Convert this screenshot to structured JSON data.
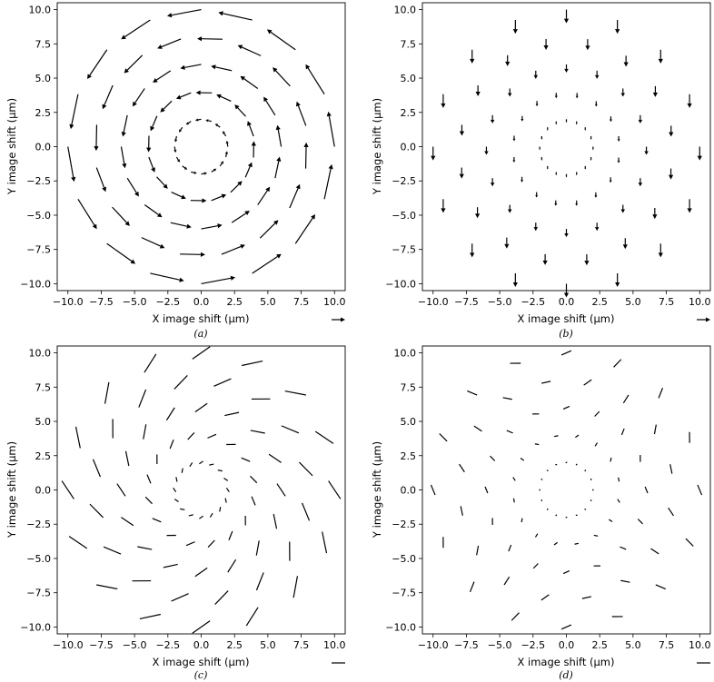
{
  "figure": {
    "panels": [
      {
        "caption": "(a)",
        "xlabel": "X image shift (µm)",
        "ylabel": "Y image shift (µm)",
        "key": "arrow"
      },
      {
        "caption": "(b)",
        "xlabel": "X image shift (µm)",
        "ylabel": "Y image shift (µm)",
        "key": "arrow"
      },
      {
        "caption": "(c)",
        "xlabel": "X image shift (µm)",
        "ylabel": "Y image shift (µm)",
        "key": "line"
      },
      {
        "caption": "(d)",
        "xlabel": "X image shift (µm)",
        "ylabel": "Y image shift (µm)",
        "key": "line"
      }
    ]
  },
  "chart_data": [
    {
      "type": "scatter",
      "subtype": "quiver",
      "caption": "(a)",
      "xlabel": "X image shift (µm)",
      "ylabel": "Y image shift (µm)",
      "xlim": [
        -10.8,
        10.8
      ],
      "ylim": [
        -10.5,
        10.5
      ],
      "xticks": [
        -10.0,
        -7.5,
        -5.0,
        -2.5,
        0.0,
        2.5,
        5.0,
        7.5,
        10.0
      ],
      "yticks": [
        -10.0,
        -7.5,
        -5.0,
        -2.5,
        0.0,
        2.5,
        5.0,
        7.5,
        10.0
      ],
      "tick_labels": [
        "−10.0",
        "−7.5",
        "−5.0",
        "−2.5",
        "0.0",
        "2.5",
        "5.0",
        "7.5",
        "10.0"
      ],
      "grid": false,
      "field": "rotation",
      "rings": [
        {
          "radius": 2,
          "count": 16,
          "magnitude": 0.45,
          "angle_offset_deg": 0
        },
        {
          "radius": 4,
          "count": 16,
          "magnitude": 1.2,
          "angle_offset_deg": 11
        },
        {
          "radius": 6,
          "count": 16,
          "magnitude": 1.6,
          "angle_offset_deg": 0
        },
        {
          "radius": 8,
          "count": 16,
          "magnitude": 1.9,
          "angle_offset_deg": 11
        },
        {
          "radius": 10,
          "count": 16,
          "magnitude": 2.6,
          "angle_offset_deg": 0
        }
      ],
      "markers": "arrow"
    },
    {
      "type": "scatter",
      "subtype": "quiver",
      "caption": "(b)",
      "xlabel": "X image shift (µm)",
      "ylabel": "Y image shift (µm)",
      "xlim": [
        -10.8,
        10.8
      ],
      "ylim": [
        -10.5,
        10.5
      ],
      "xticks": [
        -10.0,
        -7.5,
        -5.0,
        -2.5,
        0.0,
        2.5,
        5.0,
        7.5,
        10.0
      ],
      "yticks": [
        -10.0,
        -7.5,
        -5.0,
        -2.5,
        0.0,
        2.5,
        5.0,
        7.5,
        10.0
      ],
      "tick_labels": [
        "−10.0",
        "−7.5",
        "−5.0",
        "−2.5",
        "0.0",
        "2.5",
        "5.0",
        "7.5",
        "10.0"
      ],
      "grid": false,
      "field": "downward-translation",
      "rings": [
        {
          "radius": 2,
          "count": 16,
          "magnitude": 0.25,
          "angle_offset_deg": 0
        },
        {
          "radius": 4,
          "count": 16,
          "magnitude": 0.4,
          "angle_offset_deg": 11
        },
        {
          "radius": 6,
          "count": 16,
          "magnitude": 0.6,
          "angle_offset_deg": 0
        },
        {
          "radius": 8,
          "count": 16,
          "magnitude": 0.8,
          "angle_offset_deg": 11
        },
        {
          "radius": 10,
          "count": 16,
          "magnitude": 1.0,
          "angle_offset_deg": 0
        }
      ],
      "markers": "arrow"
    },
    {
      "type": "scatter",
      "subtype": "quiver",
      "caption": "(c)",
      "xlabel": "X image shift (µm)",
      "ylabel": "Y image shift (µm)",
      "xlim": [
        -10.8,
        10.8
      ],
      "ylim": [
        -10.5,
        10.5
      ],
      "xticks": [
        -10.0,
        -7.5,
        -5.0,
        -2.5,
        0.0,
        2.5,
        5.0,
        7.5,
        10.0
      ],
      "yticks": [
        -10.0,
        -7.5,
        -5.0,
        -2.5,
        0.0,
        2.5,
        5.0,
        7.5,
        10.0
      ],
      "tick_labels": [
        "−10.0",
        "−7.5",
        "−5.0",
        "−2.5",
        "0.0",
        "2.5",
        "5.0",
        "7.5",
        "10.0"
      ],
      "grid": false,
      "field": "axis-orientation",
      "rings": [
        {
          "radius": 2,
          "count": 16,
          "magnitude": 0.35,
          "angle_offset_deg": 0
        },
        {
          "radius": 4,
          "count": 16,
          "magnitude": 0.7,
          "angle_offset_deg": 11
        },
        {
          "radius": 6,
          "count": 16,
          "magnitude": 1.1,
          "angle_offset_deg": 0
        },
        {
          "radius": 8,
          "count": 16,
          "magnitude": 1.4,
          "angle_offset_deg": 11
        },
        {
          "radius": 10,
          "count": 16,
          "magnitude": 1.6,
          "angle_offset_deg": 0
        }
      ],
      "markers": "line"
    },
    {
      "type": "scatter",
      "subtype": "quiver",
      "caption": "(d)",
      "xlabel": "X image shift (µm)",
      "ylabel": "Y image shift (µm)",
      "xlim": [
        -10.8,
        10.8
      ],
      "ylim": [
        -10.5,
        10.5
      ],
      "xticks": [
        -10.0,
        -7.5,
        -5.0,
        -2.5,
        0.0,
        2.5,
        5.0,
        7.5,
        10.0
      ],
      "yticks": [
        -10.0,
        -7.5,
        -5.0,
        -2.5,
        0.0,
        2.5,
        5.0,
        7.5,
        10.0
      ],
      "tick_labels": [
        "−10.0",
        "−7.5",
        "−5.0",
        "−2.5",
        "0.0",
        "2.5",
        "5.0",
        "7.5",
        "10.0"
      ],
      "grid": false,
      "field": "axis-orientation-rotated",
      "rings": [
        {
          "radius": 2,
          "count": 16,
          "magnitude": 0.12,
          "angle_offset_deg": 0
        },
        {
          "radius": 4,
          "count": 16,
          "magnitude": 0.3,
          "angle_offset_deg": 11
        },
        {
          "radius": 6,
          "count": 16,
          "magnitude": 0.5,
          "angle_offset_deg": 0
        },
        {
          "radius": 8,
          "count": 16,
          "magnitude": 0.7,
          "angle_offset_deg": 11
        },
        {
          "radius": 10,
          "count": 16,
          "magnitude": 0.8,
          "angle_offset_deg": 0
        }
      ],
      "markers": "line"
    }
  ]
}
